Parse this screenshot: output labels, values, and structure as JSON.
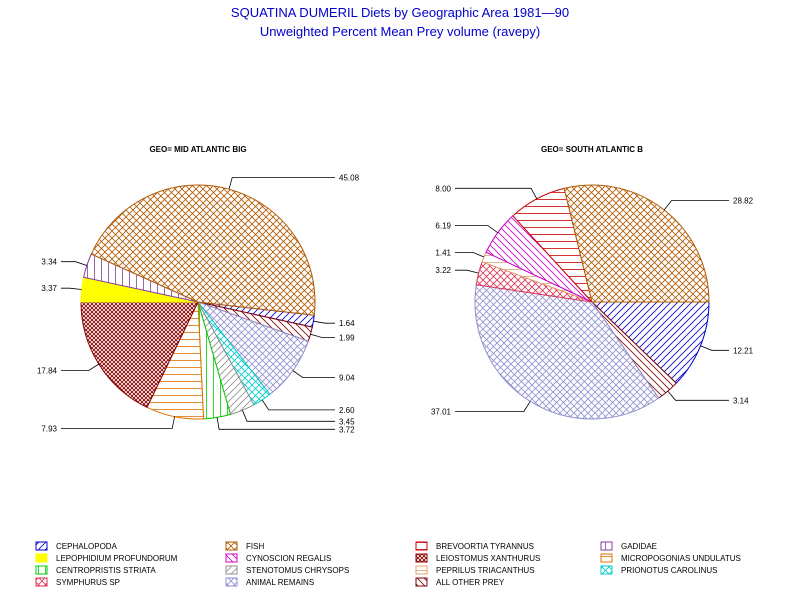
{
  "chart_data": [
    {
      "type": "pie",
      "title": "SQUATINA DUMERIL Diets by Geographic Area 1981—90",
      "subtitle": "Unweighted Percent Mean Prey volume (ravepy)",
      "panel_label": "GEO= MID ATLANTIC BIG",
      "slices": [
        {
          "category": "CEPHALOPODA",
          "value": 1.64,
          "label": "1.64"
        },
        {
          "category": "ALL OTHER PREY",
          "value": 1.99,
          "label": "1.99"
        },
        {
          "category": "ANIMAL REMAINS",
          "value": 9.04,
          "label": "9.04"
        },
        {
          "category": "PRIONOTUS CAROLINUS",
          "value": 2.6,
          "label": "2.60"
        },
        {
          "category": "STENOTOMUS CHRYSOPS",
          "value": 3.45,
          "label": "3.45"
        },
        {
          "category": "CENTROPRISTIS STRIATA",
          "value": 3.72,
          "label": "3.72"
        },
        {
          "category": "MICROPOGONIAS UNDULATUS",
          "value": 7.93,
          "label": "7.93"
        },
        {
          "category": "LEIOSTOMUS XANTHURUS",
          "value": 17.84,
          "label": "17.84"
        },
        {
          "category": "LEPOPHIDIUM PROFUNDORUM",
          "value": 3.37,
          "label": "3.37"
        },
        {
          "category": "GADIDAE",
          "value": 3.34,
          "label": "3.34"
        },
        {
          "category": "FISH",
          "value": 45.08,
          "label": "45.08"
        }
      ]
    },
    {
      "type": "pie",
      "panel_label": "GEO= SOUTH ATLANTIC B",
      "slices": [
        {
          "category": "CEPHALOPODA",
          "value": 12.21,
          "label": "12.21"
        },
        {
          "category": "ALL OTHER PREY",
          "value": 3.14,
          "label": "3.14"
        },
        {
          "category": "ANIMAL REMAINS",
          "value": 37.01,
          "label": "37.01"
        },
        {
          "category": "SYMPHURUS SP",
          "value": 3.22,
          "label": "3.22"
        },
        {
          "category": "PEPRILUS TRIACANTHUS",
          "value": 1.41,
          "label": "1.41"
        },
        {
          "category": "CYNOSCION REGALIS",
          "value": 6.19,
          "label": "6.19"
        },
        {
          "category": "BREVOORTIA TYRANNUS",
          "value": 8.0,
          "label": "8.00"
        },
        {
          "category": "FISH",
          "value": 28.82,
          "label": "28.82"
        }
      ]
    }
  ],
  "legend": {
    "placement": "bottom",
    "items": [
      {
        "name": "CEPHALOPODA",
        "color": "#0000cc",
        "pattern": "diag-up"
      },
      {
        "name": "FISH",
        "color": "#b35900",
        "pattern": "cross"
      },
      {
        "name": "BREVOORTIA TYRANNUS",
        "color": "#cc0000",
        "pattern": "horiz"
      },
      {
        "name": "GADIDAE",
        "color": "#8040a0",
        "pattern": "vert"
      },
      {
        "name": "LEPOPHIDIUM PROFUNDORUM",
        "color": "#ffff00",
        "pattern": "solid"
      },
      {
        "name": "CYNOSCION REGALIS",
        "color": "#cc00cc",
        "pattern": "diag-down"
      },
      {
        "name": "LEIOSTOMUS XANTHURUS",
        "color": "#8b0000",
        "pattern": "dense-cross"
      },
      {
        "name": "MICROPOGONIAS UNDULATUS",
        "color": "#e07000",
        "pattern": "horiz"
      },
      {
        "name": "CENTROPRISTIS STRIATA",
        "color": "#00cc00",
        "pattern": "vert"
      },
      {
        "name": "STENOTOMUS CHRYSOPS",
        "color": "#909090",
        "pattern": "diag-up"
      },
      {
        "name": "PEPRILUS TRIACANTHUS",
        "color": "#e0a070",
        "pattern": "horiz"
      },
      {
        "name": "PRIONOTUS CAROLINUS",
        "color": "#00cccc",
        "pattern": "cross"
      },
      {
        "name": "SYMPHURUS SP",
        "color": "#dd3355",
        "pattern": "cross"
      },
      {
        "name": "ANIMAL REMAINS",
        "color": "#9090d0",
        "pattern": "cross"
      },
      {
        "name": "ALL OTHER PREY",
        "color": "#800000",
        "pattern": "diag-down"
      }
    ]
  }
}
